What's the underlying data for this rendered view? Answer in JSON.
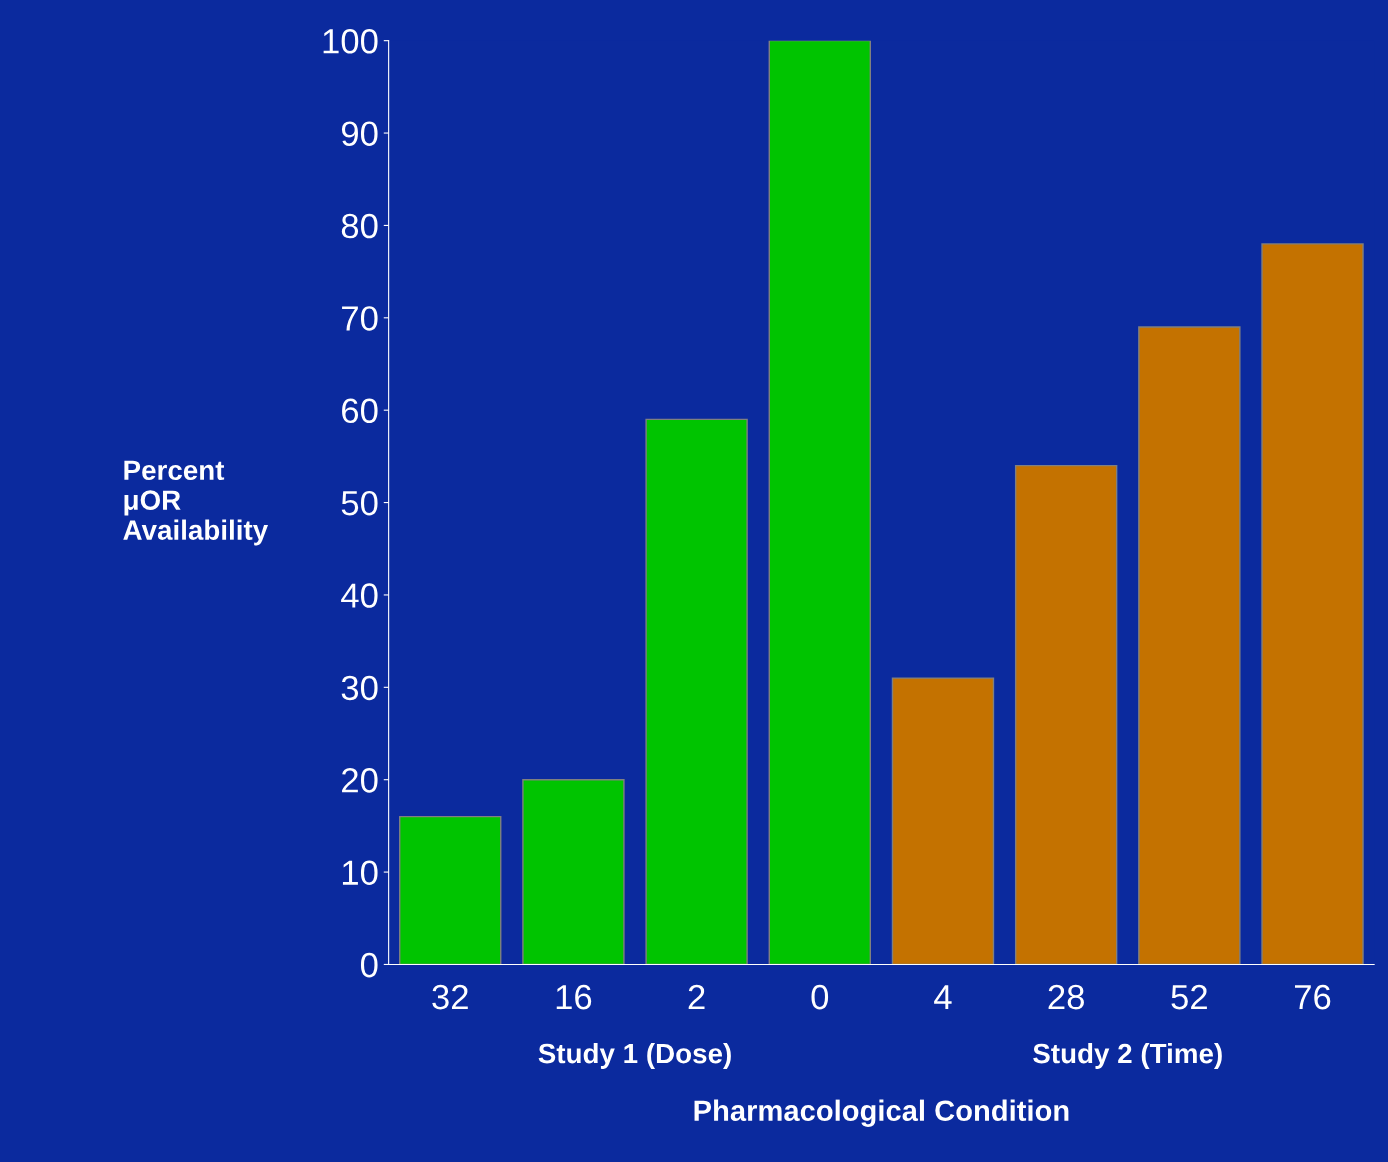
{
  "chart_data": {
    "type": "bar",
    "categories": [
      "32",
      "16",
      "2",
      "0",
      "4",
      "28",
      "52",
      "76"
    ],
    "values": [
      16,
      20,
      59,
      100,
      31,
      54,
      69,
      78
    ],
    "colors": [
      "#00c400",
      "#00c400",
      "#00c400",
      "#00c400",
      "#c47200",
      "#c47200",
      "#c47200",
      "#c47200"
    ],
    "ylim": [
      0,
      100
    ],
    "yticks": [
      0,
      10,
      20,
      30,
      40,
      50,
      60,
      70,
      80,
      90,
      100
    ],
    "ylabel": "Percent\nμOR\nAvailability",
    "xlabel": "Pharmacological Condition",
    "annotations": [
      "Study 1 (Dose)",
      "Study 2 (Time)"
    ],
    "grid": false,
    "legend": false
  }
}
